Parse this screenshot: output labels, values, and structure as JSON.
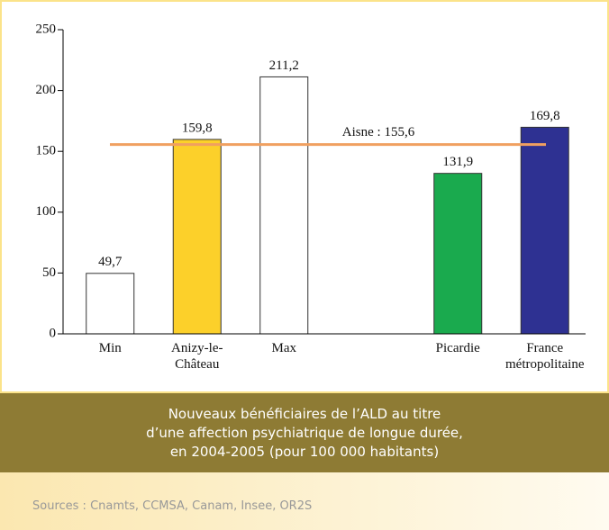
{
  "chart_data": {
    "type": "bar",
    "categories": [
      "Min",
      "Anizy-le-Château",
      "Max",
      null,
      "Picardie",
      "France métropolitaine"
    ],
    "values": [
      49.7,
      159.8,
      211.2,
      null,
      131.9,
      169.8
    ],
    "value_labels": [
      "49,7",
      "159,8",
      "211,2",
      null,
      "131,9",
      "169,8"
    ],
    "colors": [
      "#ffffff",
      "#fcd02a",
      "#ffffff",
      null,
      "#1aaa4e",
      "#2e3192"
    ],
    "ylim": [
      0,
      250
    ],
    "yticks": [
      0,
      50,
      100,
      150,
      200,
      250
    ],
    "reference_line": {
      "label": "Aisne : 155,6",
      "value": 155.6,
      "color": "#f0a060"
    }
  },
  "caption": [
    "Nouveaux bénéficiaires de l’ALD au titre",
    "d’une affection psychiatrique de longue durée,",
    "en 2004-2005 (pour 100 000 habitants)"
  ],
  "sources": "Sources : Cnamts, CCMSA, Canam, Insee, OR2S"
}
